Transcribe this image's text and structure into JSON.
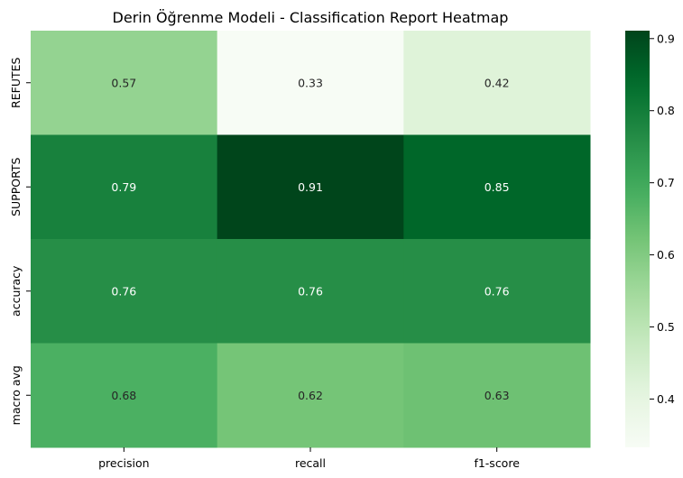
{
  "chart_data": {
    "type": "heatmap",
    "title": "Derin Öğrenme Modeli - Classification Report Heatmap",
    "xlabel": "",
    "ylabel": "",
    "columns": [
      "precision",
      "recall",
      "f1-score"
    ],
    "rows": [
      "REFUTES",
      "SUPPORTS",
      "accuracy",
      "macro avg"
    ],
    "values": [
      [
        0.57,
        0.33,
        0.42
      ],
      [
        0.79,
        0.91,
        0.85
      ],
      [
        0.76,
        0.76,
        0.76
      ],
      [
        0.68,
        0.62,
        0.63
      ]
    ],
    "value_labels": [
      [
        "0.57",
        "0.33",
        "0.42"
      ],
      [
        "0.79",
        "0.91",
        "0.85"
      ],
      [
        "0.76",
        "0.76",
        "0.76"
      ],
      [
        "0.68",
        "0.62",
        "0.63"
      ]
    ],
    "colormap": "Greens",
    "color_range": [
      0.333,
      0.911
    ],
    "colorbar_ticks": [
      0.4,
      0.5,
      0.6,
      0.7,
      0.8,
      0.9
    ],
    "colorbar_tick_labels": [
      "0.4",
      "0.5",
      "0.6",
      "0.7",
      "0.8",
      "0.9"
    ],
    "annotation_colors": {
      "light_cell": "#262626",
      "dark_cell": "#ffffff"
    }
  }
}
